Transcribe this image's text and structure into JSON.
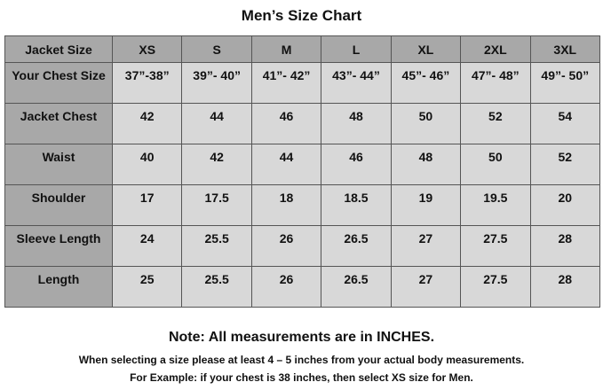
{
  "title": "Men’s Size Chart",
  "table": {
    "headers": [
      "Jacket Size",
      "XS",
      "S",
      "M",
      "L",
      "XL",
      "2XL",
      "3XL"
    ],
    "rows": [
      {
        "label": "Your Chest Size",
        "values": [
          "37”-38”",
          "39”- 40”",
          "41”- 42”",
          "43”- 44”",
          "45”- 46”",
          "47”- 48”",
          "49”- 50”"
        ]
      },
      {
        "label": "Jacket Chest",
        "values": [
          "42",
          "44",
          "46",
          "48",
          "50",
          "52",
          "54"
        ]
      },
      {
        "label": "Waist",
        "values": [
          "40",
          "42",
          "44",
          "46",
          "48",
          "50",
          "52"
        ]
      },
      {
        "label": "Shoulder",
        "values": [
          "17",
          "17.5",
          "18",
          "18.5",
          "19",
          "19.5",
          "20"
        ]
      },
      {
        "label": "Sleeve Length",
        "values": [
          "24",
          "25.5",
          "26",
          "26.5",
          "27",
          "27.5",
          "28"
        ]
      },
      {
        "label": "Length",
        "values": [
          "25",
          "25.5",
          "26",
          "26.5",
          "27",
          "27.5",
          "28"
        ]
      }
    ]
  },
  "note": "Note: All measurements are in INCHES.",
  "instruction_1": "When selecting a size please at least 4 – 5 inches from your actual body measurements.",
  "instruction_2": "For Example: if your chest is 38 inches, then select XS size for Men.",
  "colors": {
    "header_bg": "#a8a8a8",
    "cell_bg": "#d8d8d8"
  }
}
